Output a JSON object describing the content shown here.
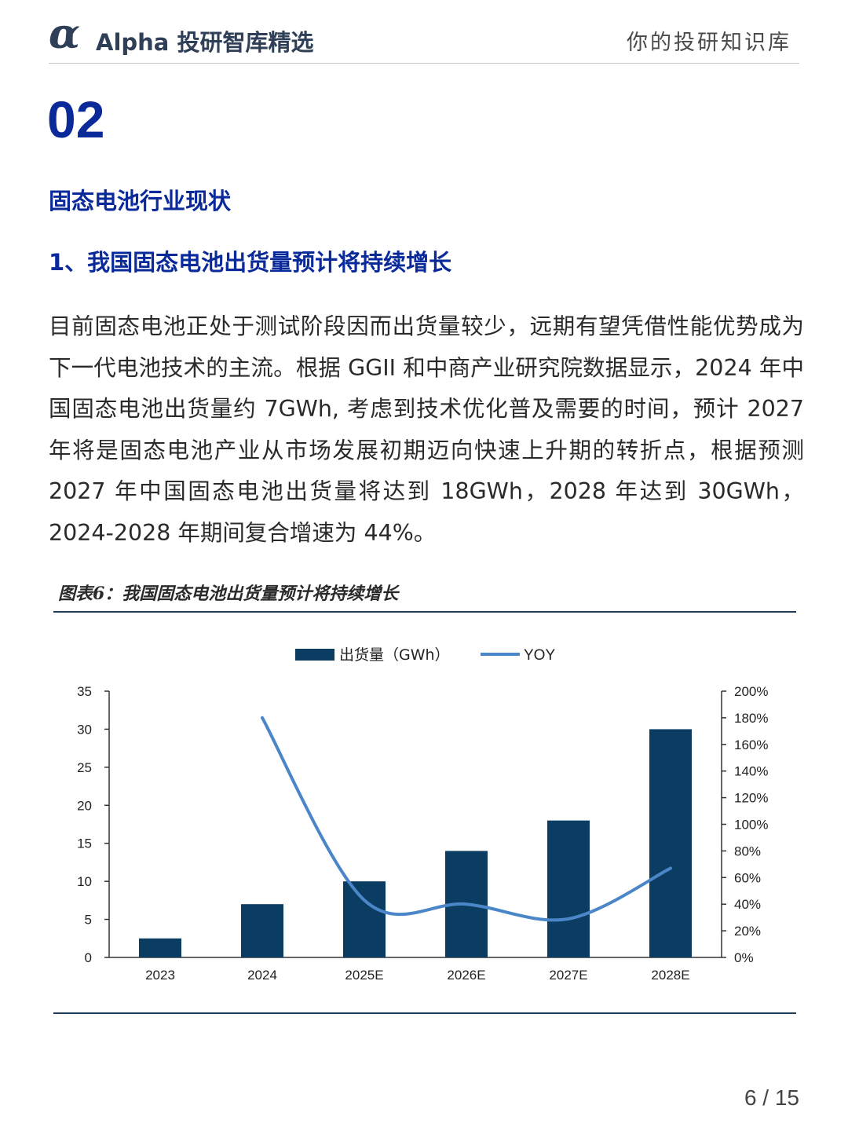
{
  "header": {
    "logo_symbol": "α",
    "brand": "Alpha 投研智库精选",
    "tagline": "你的投研知识库"
  },
  "section": {
    "number": "02",
    "title": "固态电池行业现状",
    "subtitle": "1、我国固态电池出货量预计将持续增长"
  },
  "body": {
    "paragraph": "目前固态电池正处于测试阶段因而出货量较少，远期有望凭借性能优势成为下一代电池技术的主流。根据 GGII 和中商产业研究院数据显示，2024 年中国固态电池出货量约 7GWh, 考虑到技术优化普及需要的时间，预计 2027 年将是固态电池产业从市场发展初期迈向快速上升期的转折点，根据预测 2027 年中国固态电池出货量将达到 18GWh，2028 年达到 30GWh，2024-2028 年期间复合增速为 44%。"
  },
  "figure": {
    "caption": "图表6：我国固态电池出货量预计将持续增长"
  },
  "chart_data": {
    "type": "bar",
    "categories": [
      "2023",
      "2024",
      "2025E",
      "2026E",
      "2027E",
      "2028E"
    ],
    "series": [
      {
        "name": "出货量（GWh）",
        "type": "bar",
        "axis": "left",
        "values": [
          2.5,
          7,
          10,
          14,
          18,
          30
        ],
        "color": "#0b3d62"
      },
      {
        "name": "YOY",
        "type": "line",
        "axis": "right",
        "values": [
          null,
          180,
          43,
          40,
          29,
          67
        ],
        "unit": "%",
        "color": "#4a86c8"
      }
    ],
    "y_left": {
      "range": [
        0,
        35
      ],
      "ticks": [
        0,
        5,
        10,
        15,
        20,
        25,
        30,
        35
      ]
    },
    "y_right": {
      "range": [
        0,
        200
      ],
      "ticks": [
        0,
        20,
        40,
        60,
        80,
        100,
        120,
        140,
        160,
        180,
        200
      ],
      "unit": "%"
    },
    "legend_position": "top-center",
    "grid": false
  },
  "footer": {
    "page": "6 / 15"
  }
}
